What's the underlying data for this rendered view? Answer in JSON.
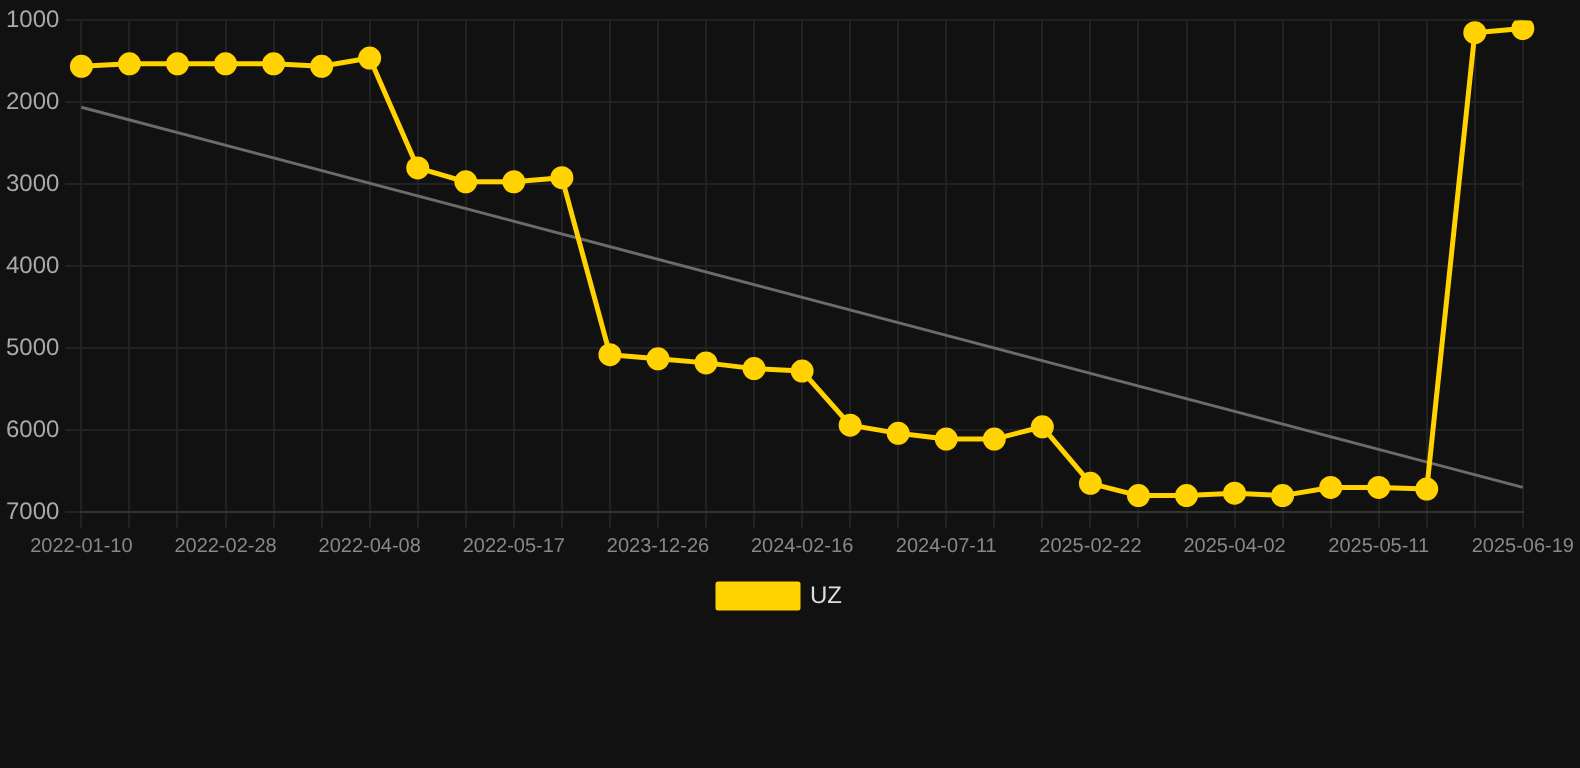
{
  "chart_data": {
    "type": "line",
    "categories": [
      "2022-01-10",
      null,
      null,
      "2022-02-28",
      null,
      null,
      "2022-04-08",
      null,
      null,
      "2022-05-17",
      null,
      null,
      "2023-12-26",
      null,
      null,
      "2024-02-16",
      null,
      null,
      "2024-07-11",
      null,
      null,
      "2025-02-22",
      null,
      null,
      "2025-04-02",
      null,
      null,
      "2025-05-11",
      null,
      null,
      "2025-06-19"
    ],
    "series": [
      {
        "name": "UZ",
        "color": "#ffd200",
        "values": [
          1560,
          1530,
          1530,
          1530,
          1530,
          1560,
          1460,
          2800,
          2970,
          2970,
          2920,
          5080,
          5130,
          5180,
          5250,
          5280,
          5940,
          6040,
          6110,
          6110,
          5960,
          6650,
          6800,
          6800,
          6770,
          6800,
          6700,
          6700,
          6720,
          1150,
          1100
        ]
      },
      {
        "type": "line",
        "color": "#6b6b6b",
        "values": [
          2060,
          null,
          null,
          null,
          null,
          null,
          null,
          null,
          null,
          null,
          null,
          null,
          null,
          null,
          null,
          null,
          null,
          null,
          null,
          null,
          null,
          null,
          null,
          null,
          null,
          null,
          null,
          null,
          null,
          null,
          6700
        ],
        "marker": "none"
      }
    ],
    "ylim": [
      7000,
      1000
    ],
    "yticks": [
      1000,
      2000,
      3000,
      4000,
      5000,
      6000,
      7000
    ],
    "grid": true,
    "legend": "bottom",
    "marker": "circle",
    "line_style": "solid"
  }
}
